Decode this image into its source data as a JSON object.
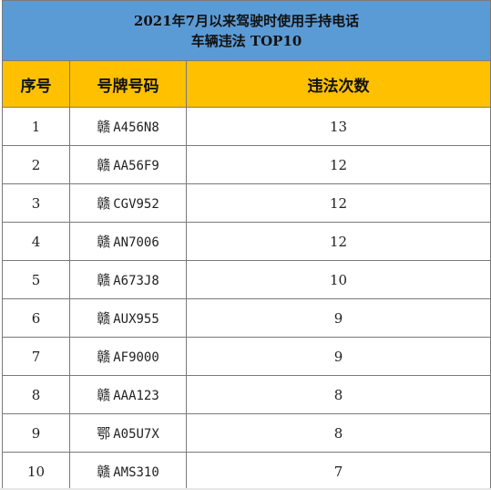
{
  "title": {
    "line1": "2021年7月以来驾驶时使用手持电话",
    "line2": "车辆违法 TOP10"
  },
  "columns": [
    "序号",
    "号牌号码",
    "违法次数"
  ],
  "colors": {
    "title_bg": "#5b9bd5",
    "header_bg": "#ffc000",
    "border": "#7a7a7a"
  },
  "rows": [
    {
      "no": "1",
      "prefix": "赣",
      "plate": "A456N8",
      "count": "13"
    },
    {
      "no": "2",
      "prefix": "赣",
      "plate": "AA56F9",
      "count": "12"
    },
    {
      "no": "3",
      "prefix": "赣",
      "plate": "CGV952",
      "count": "12"
    },
    {
      "no": "4",
      "prefix": "赣",
      "plate": "AN7006",
      "count": "12"
    },
    {
      "no": "5",
      "prefix": "赣",
      "plate": "A673J8",
      "count": "10"
    },
    {
      "no": "6",
      "prefix": "赣",
      "plate": "AUX955",
      "count": "9"
    },
    {
      "no": "7",
      "prefix": "赣",
      "plate": "AF9000",
      "count": "9"
    },
    {
      "no": "8",
      "prefix": "赣",
      "plate": "AAA123",
      "count": "8"
    },
    {
      "no": "9",
      "prefix": "鄂",
      "plate": "A05U7X",
      "count": "8"
    },
    {
      "no": "10",
      "prefix": "赣",
      "plate": "AMS310",
      "count": "7"
    }
  ]
}
